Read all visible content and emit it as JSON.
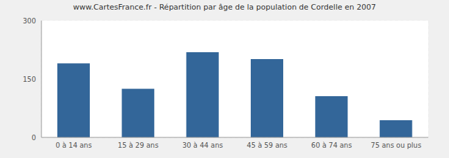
{
  "chart_data": {
    "type": "bar",
    "title": "www.CartesFrance.fr - Répartition par âge de la population de Cordelle en 2007",
    "categories": [
      "0 à 14 ans",
      "15 à 29 ans",
      "30 à 44 ans",
      "45 à 59 ans",
      "60 à 74 ans",
      "75 ans ou plus"
    ],
    "values": [
      190,
      125,
      219,
      201,
      106,
      44
    ],
    "color": "#336699",
    "ylim": [
      0,
      300
    ],
    "yticks": [
      0,
      150,
      300
    ],
    "grid": true
  }
}
